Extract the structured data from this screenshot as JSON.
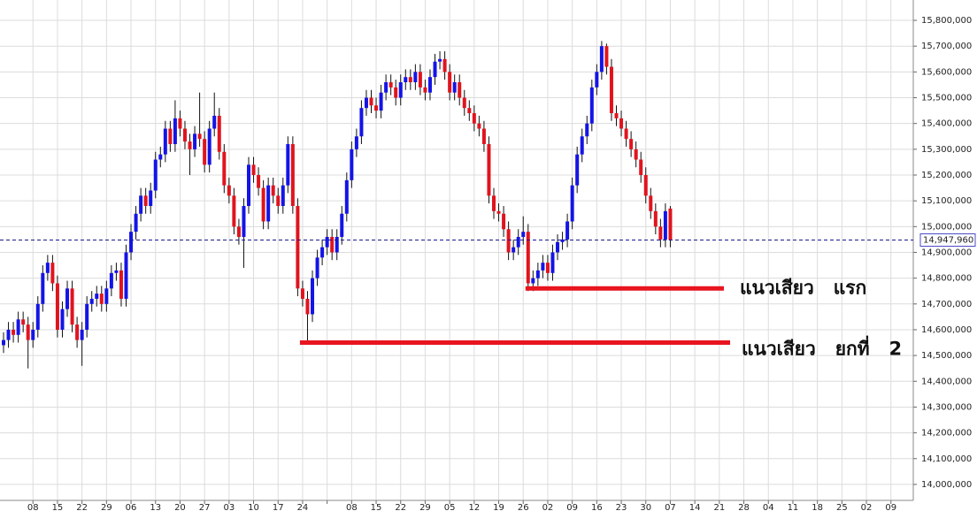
{
  "chart_data": {
    "type": "candlestick",
    "x_labels": [
      "08",
      "15",
      "22",
      "29",
      "06",
      "13",
      "20",
      "27",
      "03",
      "10",
      "17",
      "24",
      null,
      "08",
      "15",
      "22",
      "29",
      "05",
      "12",
      "19",
      "26",
      "02",
      "09",
      "16",
      "23",
      "30",
      "07",
      "14",
      "21",
      "28",
      "04",
      "11",
      "18",
      "25",
      "02",
      "09"
    ],
    "open": [
      14540000,
      14560000,
      14600000,
      14580000,
      14640000,
      14620000,
      14560000,
      14600000,
      14700000,
      14820000,
      14860000,
      14780000,
      14600000,
      14680000,
      14760000,
      14620000,
      14560000,
      14600000,
      14700000,
      14720000,
      14740000,
      14700000,
      14760000,
      14820000,
      14830000,
      14720000,
      14900000,
      14980000,
      15050000,
      15120000,
      15080000,
      15140000,
      15260000,
      15280000,
      15380000,
      15320000,
      15420000,
      15380000,
      15330000,
      15300000,
      15360000,
      15340000,
      15240000,
      15380000,
      15430000,
      15290000,
      15160000,
      15120000,
      15000000,
      14960000,
      15080000,
      15240000,
      15200000,
      15150000,
      15020000,
      15160000,
      15120000,
      15080000,
      15160000,
      15320000,
      15080000,
      14760000,
      14720000,
      14660000,
      14800000,
      14880000,
      14920000,
      14960000,
      14900000,
      14960000,
      15050000,
      15180000,
      15300000,
      15350000,
      15460000,
      15500000,
      15470000,
      15450000,
      15520000,
      15560000,
      15540000,
      15500000,
      15560000,
      15580000,
      15560000,
      15600000,
      15540000,
      15520000,
      15580000,
      15640000,
      15650000,
      15600000,
      15520000,
      15560000,
      15500000,
      15460000,
      15440000,
      15400000,
      15380000,
      15320000,
      15120000,
      15060000,
      15050000,
      14990000,
      14900000,
      14920000,
      14960000,
      14980000,
      14780000,
      14800000,
      14830000,
      14860000,
      14820000,
      14900000,
      14940000,
      14950000,
      15020000,
      15160000,
      15280000,
      15350000,
      15400000,
      15540000,
      15600000,
      15700000,
      15620000,
      15440000,
      15420000,
      15380000,
      15340000,
      15300000,
      15260000,
      15200000,
      15120000,
      15060000,
      15000000,
      14950000,
      15070000
    ],
    "high": [
      14590000,
      14630000,
      14630000,
      14670000,
      14670000,
      14650000,
      14630000,
      14730000,
      14850000,
      14890000,
      14890000,
      14810000,
      14710000,
      14790000,
      14790000,
      14650000,
      14630000,
      14730000,
      14750000,
      14770000,
      14770000,
      14790000,
      14850000,
      14860000,
      14860000,
      14930000,
      15010000,
      15080000,
      15150000,
      15150000,
      15170000,
      15290000,
      15310000,
      15410000,
      15410000,
      15490000,
      15450000,
      15410000,
      15360000,
      15390000,
      15520000,
      15370000,
      15410000,
      15520000,
      15460000,
      15320000,
      15190000,
      15150000,
      15030000,
      15110000,
      15270000,
      15270000,
      15230000,
      15180000,
      15190000,
      15190000,
      15150000,
      15190000,
      15350000,
      15350000,
      15110000,
      14790000,
      14750000,
      14830000,
      14910000,
      14950000,
      14990000,
      14990000,
      14990000,
      15080000,
      15210000,
      15330000,
      15380000,
      15490000,
      15530000,
      15530000,
      15500000,
      15550000,
      15590000,
      15590000,
      15570000,
      15590000,
      15610000,
      15610000,
      15630000,
      15630000,
      15570000,
      15610000,
      15670000,
      15680000,
      15680000,
      15630000,
      15590000,
      15590000,
      15530000,
      15490000,
      15470000,
      15430000,
      15410000,
      15350000,
      15150000,
      15090000,
      15080000,
      15020000,
      14950000,
      14990000,
      15040000,
      15010000,
      14830000,
      14860000,
      14890000,
      14890000,
      14930000,
      14970000,
      14980000,
      15050000,
      15190000,
      15310000,
      15380000,
      15430000,
      15570000,
      15630000,
      15720000,
      15710000,
      15650000,
      15470000,
      15450000,
      15410000,
      15370000,
      15330000,
      15290000,
      15230000,
      15150000,
      15090000,
      15030000,
      15090000,
      15080000
    ],
    "low": [
      14510000,
      14530000,
      14550000,
      14550000,
      14590000,
      14450000,
      14530000,
      14570000,
      14670000,
      14790000,
      14750000,
      14570000,
      14570000,
      14650000,
      14590000,
      14530000,
      14460000,
      14570000,
      14670000,
      14690000,
      14670000,
      14670000,
      14730000,
      14790000,
      14690000,
      14690000,
      14870000,
      14950000,
      15020000,
      15050000,
      15050000,
      15110000,
      15230000,
      15250000,
      15290000,
      15290000,
      15350000,
      15300000,
      15200000,
      15270000,
      15310000,
      15210000,
      15210000,
      15350000,
      15260000,
      15130000,
      15090000,
      14970000,
      14930000,
      14840000,
      15050000,
      15170000,
      15120000,
      14990000,
      14990000,
      15090000,
      15050000,
      15050000,
      15130000,
      15050000,
      14730000,
      14690000,
      14550000,
      14630000,
      14770000,
      14850000,
      14890000,
      14870000,
      14870000,
      14930000,
      15020000,
      15150000,
      15270000,
      15320000,
      15430000,
      15440000,
      15420000,
      15420000,
      15490000,
      15510000,
      15470000,
      15470000,
      15530000,
      15530000,
      15530000,
      15510000,
      15490000,
      15490000,
      15550000,
      15610000,
      15570000,
      15490000,
      15490000,
      15470000,
      15430000,
      15410000,
      15370000,
      15350000,
      15290000,
      15090000,
      15030000,
      15020000,
      14960000,
      14870000,
      14870000,
      14890000,
      14930000,
      14750000,
      14750000,
      14770000,
      14800000,
      14790000,
      14790000,
      14870000,
      14910000,
      14920000,
      14990000,
      15130000,
      15250000,
      15320000,
      15370000,
      15510000,
      15570000,
      15590000,
      15410000,
      15390000,
      15350000,
      15310000,
      15270000,
      15230000,
      15170000,
      15090000,
      15030000,
      14970000,
      14920000,
      14920000,
      14920000
    ],
    "close": [
      14560000,
      14600000,
      14580000,
      14640000,
      14620000,
      14560000,
      14600000,
      14700000,
      14820000,
      14860000,
      14780000,
      14600000,
      14680000,
      14760000,
      14620000,
      14560000,
      14600000,
      14700000,
      14720000,
      14740000,
      14700000,
      14760000,
      14820000,
      14830000,
      14720000,
      14900000,
      14980000,
      15050000,
      15120000,
      15080000,
      15140000,
      15260000,
      15280000,
      15380000,
      15320000,
      15420000,
      15380000,
      15330000,
      15300000,
      15360000,
      15340000,
      15240000,
      15380000,
      15430000,
      15290000,
      15160000,
      15120000,
      15000000,
      14960000,
      15080000,
      15240000,
      15200000,
      15150000,
      15020000,
      15160000,
      15120000,
      15080000,
      15160000,
      15320000,
      15080000,
      14760000,
      14720000,
      14660000,
      14800000,
      14880000,
      14920000,
      14960000,
      14900000,
      14960000,
      15050000,
      15180000,
      15300000,
      15350000,
      15460000,
      15500000,
      15470000,
      15450000,
      15520000,
      15560000,
      15540000,
      15500000,
      15560000,
      15580000,
      15560000,
      15600000,
      15540000,
      15520000,
      15580000,
      15640000,
      15650000,
      15600000,
      15520000,
      15560000,
      15500000,
      15460000,
      15440000,
      15400000,
      15380000,
      15320000,
      15120000,
      15060000,
      15050000,
      14990000,
      14900000,
      14920000,
      14960000,
      14980000,
      14780000,
      14800000,
      14830000,
      14860000,
      14820000,
      14900000,
      14940000,
      14950000,
      15020000,
      15160000,
      15280000,
      15350000,
      15400000,
      15540000,
      15600000,
      15700000,
      15620000,
      15440000,
      15420000,
      15380000,
      15340000,
      15300000,
      15260000,
      15200000,
      15120000,
      15060000,
      15000000,
      14950000,
      15060000,
      14947960
    ],
    "up_color": "#1414e6",
    "down_color": "#e0141e",
    "ylim": [
      13938000,
      15879000
    ],
    "yticks": [
      {
        "value": 14000000,
        "label": "14,000,000"
      },
      {
        "value": 14100000,
        "label": "14,100,000"
      },
      {
        "value": 14200000,
        "label": "14,200,000"
      },
      {
        "value": 14300000,
        "label": "14,300,000"
      },
      {
        "value": 14400000,
        "label": "14,400,000"
      },
      {
        "value": 14500000,
        "label": "14,500,000"
      },
      {
        "value": 14600000,
        "label": "14,600,000"
      },
      {
        "value": 14700000,
        "label": "14,700,000"
      },
      {
        "value": 14800000,
        "label": "14,800,000"
      },
      {
        "value": 14900000,
        "label": "14,900,000"
      },
      {
        "value": 15000000,
        "label": "15,000,000"
      },
      {
        "value": 15100000,
        "label": "15,100,000"
      },
      {
        "value": 15200000,
        "label": "15,200,000"
      },
      {
        "value": 15300000,
        "label": "15,300,000"
      },
      {
        "value": 15400000,
        "label": "15,400,000"
      },
      {
        "value": 15500000,
        "label": "15,500,000"
      },
      {
        "value": 15600000,
        "label": "15,600,000"
      },
      {
        "value": 15700000,
        "label": "15,700,000"
      },
      {
        "value": 15800000,
        "label": "15,800,000"
      }
    ],
    "grid": true,
    "last_price": {
      "value": 14947960,
      "label": "14,947,960"
    },
    "annotations": [
      {
        "text": "แนวเสียว   แรก",
        "value": 14760000,
        "color": "#e8141e"
      },
      {
        "text": "แนวเสียว   ยกที่   2",
        "value": 14550000,
        "color": "#e8141e"
      }
    ]
  }
}
